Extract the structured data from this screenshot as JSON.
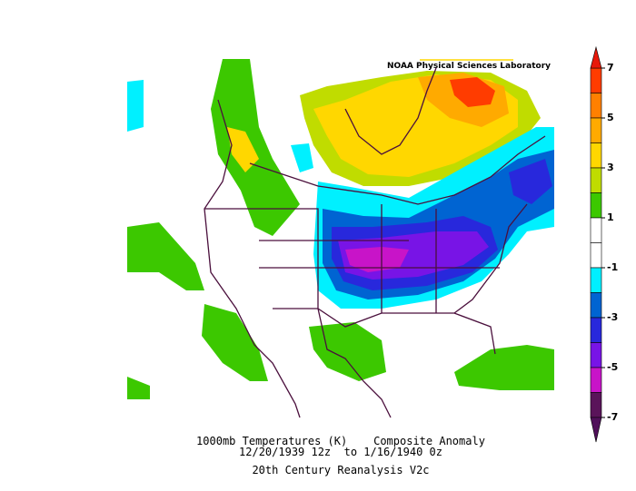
{
  "header": {
    "credit": "NOAA Physical Sciences Laboratory"
  },
  "caption": {
    "line1": "1000mb Temperatures (K)    Composite Anomaly",
    "line2": "12/20/1939 12z  to 1/16/1940 0z",
    "line3": "20th Century Reanalysis V2c"
  },
  "colorbar": {
    "lim": [
      -7,
      7
    ],
    "ticks": [
      7,
      5,
      3,
      1,
      -1,
      -3,
      -5,
      -7
    ],
    "above_color": "#e8190a",
    "below_color": "#50105a",
    "bands": [
      {
        "from": 6,
        "to": 7,
        "color": "#ff3c00"
      },
      {
        "from": 5,
        "to": 6,
        "color": "#ff8000"
      },
      {
        "from": 4,
        "to": 5,
        "color": "#ffaa00"
      },
      {
        "from": 3,
        "to": 4,
        "color": "#ffd700"
      },
      {
        "from": 2,
        "to": 3,
        "color": "#c0dc00"
      },
      {
        "from": 1,
        "to": 2,
        "color": "#3cc800"
      },
      {
        "from": 0,
        "to": 1,
        "color": "#ffffff"
      },
      {
        "from": -1,
        "to": 0,
        "color": "#ffffff"
      },
      {
        "from": -2,
        "to": -1,
        "color": "#00f0ff"
      },
      {
        "from": -3,
        "to": -2,
        "color": "#0064d2"
      },
      {
        "from": -4,
        "to": -3,
        "color": "#2828dc"
      },
      {
        "from": -5,
        "to": -4,
        "color": "#7814e6"
      },
      {
        "from": -6,
        "to": -5,
        "color": "#c814c8"
      },
      {
        "from": -7,
        "to": -6,
        "color": "#5a145a"
      }
    ]
  }
}
